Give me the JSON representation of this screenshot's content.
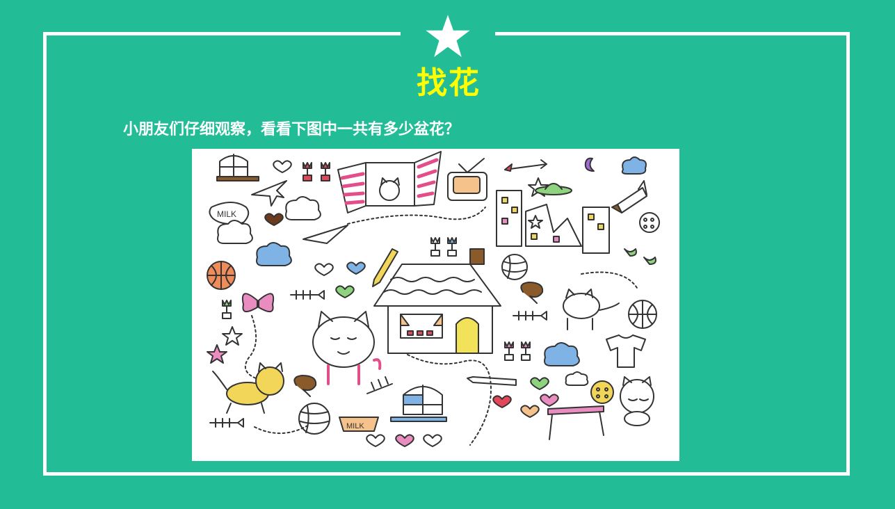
{
  "slide": {
    "title": "找花",
    "subtitle": "小朋友们仔细观察，看看下图中一共有多少盆花？"
  },
  "colors": {
    "background": "#22bd96",
    "frame": "#ffffff",
    "title": "#ffff00",
    "subtitle": "#ffffff",
    "star": "#ffffff",
    "picture_background": "#ffffff"
  },
  "illustration": {
    "milk_label": "MILK"
  }
}
